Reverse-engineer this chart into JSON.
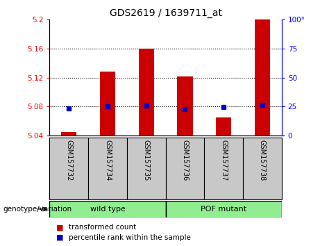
{
  "title": "GDS2619 / 1639711_at",
  "samples": [
    "GSM157732",
    "GSM157734",
    "GSM157735",
    "GSM157736",
    "GSM157737",
    "GSM157738"
  ],
  "red_values": [
    5.045,
    5.128,
    5.16,
    5.121,
    5.065,
    5.2
  ],
  "blue_values": [
    5.077,
    5.08,
    5.081,
    5.076,
    5.079,
    5.082
  ],
  "y_min": 5.04,
  "y_max": 5.2,
  "y_ticks_left": [
    5.04,
    5.08,
    5.12,
    5.16,
    5.2
  ],
  "y_ticks_right": [
    0,
    25,
    50,
    75,
    100
  ],
  "grid_values": [
    5.08,
    5.12,
    5.16
  ],
  "group_wt_label": "wild type",
  "group_pof_label": "POF mutant",
  "group_color": "#90EE90",
  "group_label_text": "genotype/variation",
  "bar_color": "#CC0000",
  "dot_color": "#0000CC",
  "bar_bottom": 5.04,
  "legend_items": [
    "transformed count",
    "percentile rank within the sample"
  ],
  "sample_bg_color": "#C8C8C8",
  "plot_bg": "#ffffff",
  "bar_width": 0.4
}
